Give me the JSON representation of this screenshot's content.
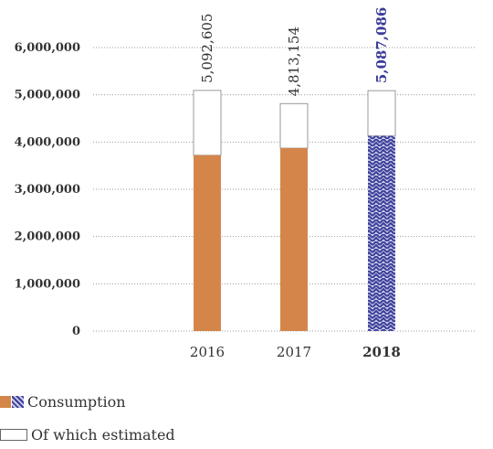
{
  "chart_data": {
    "type": "bar",
    "stacked": true,
    "categories": [
      "2016",
      "2017",
      "2018"
    ],
    "highlight_category": "2018",
    "series": [
      {
        "name": "Consumption",
        "values": [
          3720000,
          3870000,
          4130000
        ]
      },
      {
        "name": "Of which estimated",
        "values": [
          1372605,
          943154,
          957086
        ]
      }
    ],
    "totals": [
      "5,092,605",
      "4,813,154",
      "5,087,086"
    ],
    "ylim": [
      0,
      6000000
    ],
    "yticks": [
      "0",
      "1,000,000",
      "2,000,000",
      "3,000,000",
      "4,000,000",
      "5,000,000",
      "6,000,000"
    ],
    "grid": "dotted horizontal",
    "legend_position": "bottom-left"
  },
  "colors": {
    "consumption": "#d4864a",
    "highlight": "#3b3d9a",
    "highlight_light": "#c9cbe6",
    "estimated_fill": "#ffffff",
    "outline": "#999999",
    "grid": "#999999",
    "text": "#333333"
  },
  "legend": {
    "consumption_label": "Consumption",
    "estimated_label": "Of which estimated"
  }
}
